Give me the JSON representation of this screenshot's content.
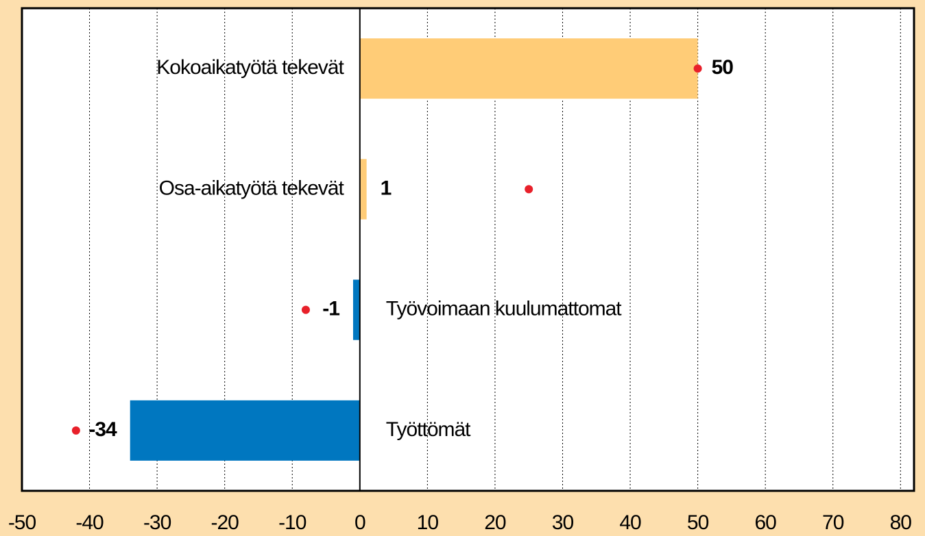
{
  "chart_data": {
    "type": "bar",
    "orientation": "horizontal",
    "categories": [
      "Kokoaikatyötä tekevät",
      "Osa-aikatyötä tekevät",
      "Työvoimaan kuulumattomat",
      "Työttömät"
    ],
    "values": [
      50,
      1,
      -1,
      -34
    ],
    "colors": [
      "#ffcc77",
      "#ffcc77",
      "#0077c0",
      "#0077c0"
    ],
    "dot_values": [
      50,
      25,
      -8,
      -42
    ],
    "dot_color": "#e8202a",
    "xlim": [
      -50,
      82
    ],
    "xticks": [
      -50,
      -40,
      -30,
      -20,
      -10,
      0,
      10,
      20,
      30,
      40,
      50,
      60,
      70,
      80
    ],
    "grid": true
  }
}
